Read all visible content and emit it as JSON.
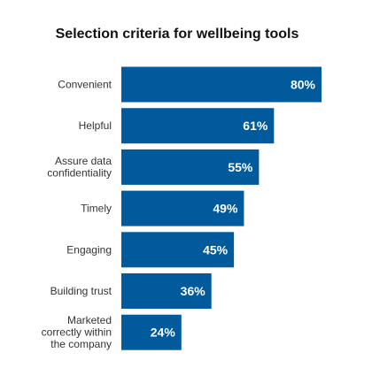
{
  "colors": {
    "bar": "#005A9C",
    "bar_label": "#ffffff",
    "category_label": "#333333",
    "background": "#ffffff"
  },
  "chart_data": {
    "type": "bar",
    "orientation": "horizontal",
    "title": "Selection criteria for wellbeing tools",
    "xlabel": "",
    "ylabel": "",
    "value_suffix": "%",
    "xlim": [
      0,
      80
    ],
    "grid": false,
    "legend": "none",
    "categories": [
      [
        "Convenient"
      ],
      [
        "Helpful"
      ],
      [
        "Assure data",
        "confidentiality"
      ],
      [
        "Timely"
      ],
      [
        "Engaging"
      ],
      [
        "Building trust"
      ],
      [
        "Marketed",
        "correctly within",
        "the company"
      ]
    ],
    "values": [
      80,
      61,
      55,
      49,
      45,
      36,
      24
    ]
  }
}
